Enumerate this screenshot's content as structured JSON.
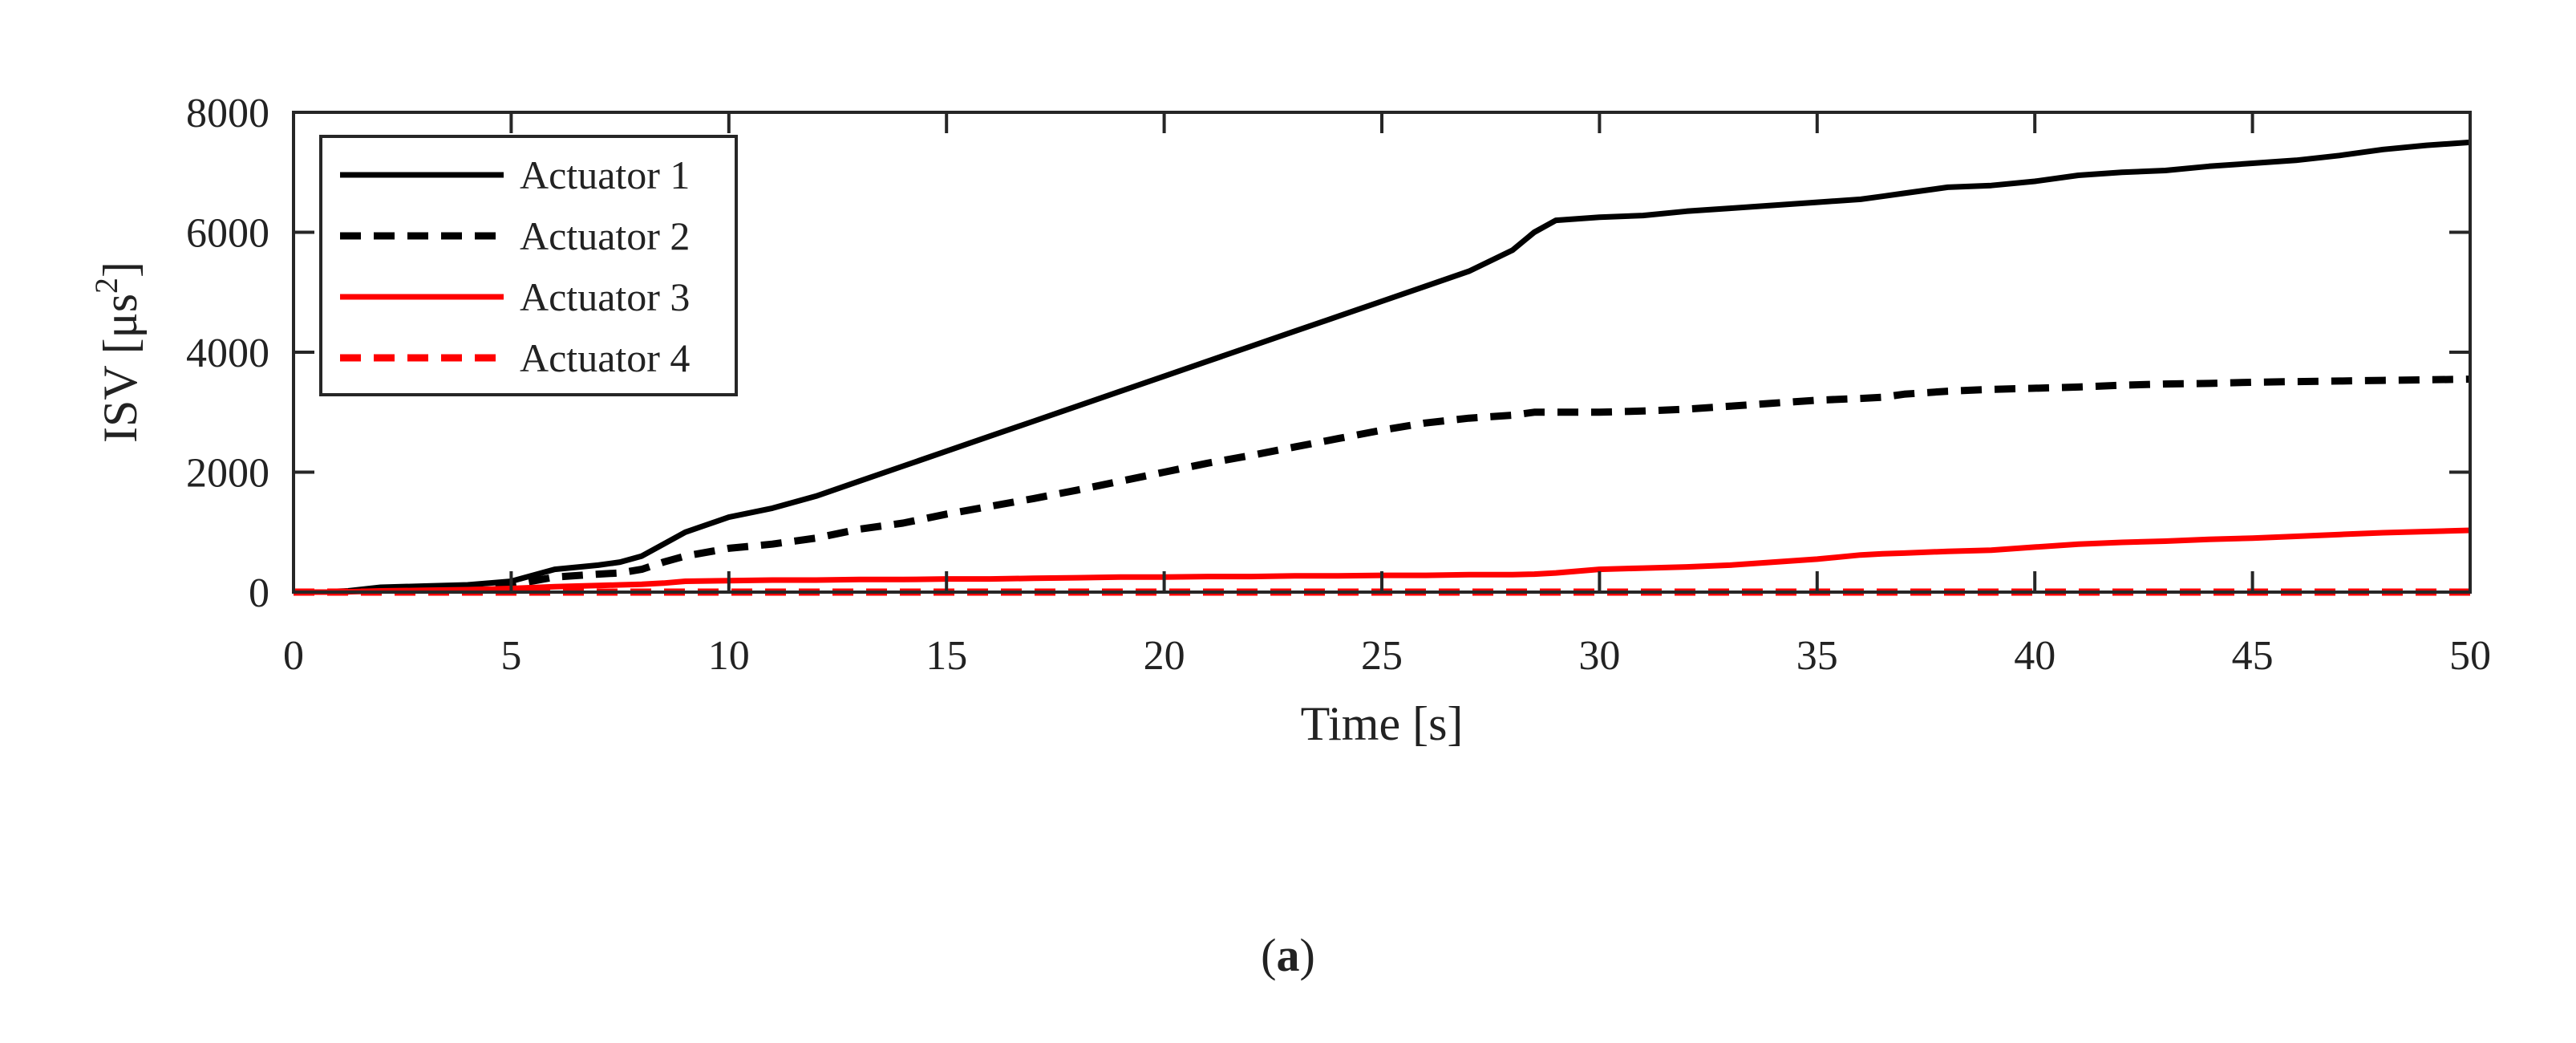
{
  "chart_data": {
    "type": "line",
    "title": "",
    "xlabel": "Time [s]",
    "ylabel_prefix": "ISV [μs",
    "ylabel_sup": "2",
    "ylabel_suffix": "]",
    "xlim": [
      0,
      50
    ],
    "ylim": [
      0,
      8000
    ],
    "xticks": [
      0,
      5,
      10,
      15,
      20,
      25,
      30,
      35,
      40,
      45,
      50
    ],
    "yticks": [
      0,
      2000,
      4000,
      6000,
      8000
    ],
    "xtick_labels": [
      "0",
      "5",
      "10",
      "15",
      "20",
      "25",
      "30",
      "35",
      "40",
      "45",
      "50"
    ],
    "ytick_labels": [
      "0",
      "2000",
      "4000",
      "6000",
      "8000"
    ],
    "grid": false,
    "legend_position": "top-left",
    "caption_open": "(",
    "caption_letter": "a",
    "caption_close": ")",
    "x": [
      0,
      1,
      2,
      3,
      4,
      5,
      6,
      7,
      7.5,
      8,
      8.5,
      9,
      10,
      11,
      12,
      13,
      14,
      15,
      16,
      17,
      18,
      19,
      20,
      21,
      22,
      23,
      24,
      25,
      26,
      27,
      28,
      28.5,
      29,
      30,
      31,
      32,
      33,
      34,
      35,
      36,
      36.5,
      37,
      38,
      39,
      40,
      41,
      42,
      43,
      44,
      45,
      46,
      47,
      48,
      49,
      50
    ],
    "series": [
      {
        "name": "Actuator 1",
        "color": "#000000",
        "dash": "solid",
        "values": [
          0,
          0,
          80,
          100,
          120,
          180,
          380,
          450,
          500,
          600,
          800,
          1000,
          1250,
          1400,
          1600,
          1850,
          2100,
          2350,
          2600,
          2850,
          3100,
          3350,
          3600,
          3850,
          4100,
          4350,
          4600,
          4850,
          5100,
          5350,
          5700,
          6000,
          6200,
          6250,
          6280,
          6350,
          6400,
          6450,
          6500,
          6550,
          6600,
          6650,
          6750,
          6780,
          6850,
          6950,
          7000,
          7030,
          7100,
          7150,
          7200,
          7280,
          7380,
          7450,
          7500
        ]
      },
      {
        "name": "Actuator 2",
        "color": "#000000",
        "dash": "dashed",
        "values": [
          0,
          0,
          30,
          50,
          60,
          120,
          250,
          300,
          320,
          380,
          500,
          600,
          730,
          800,
          900,
          1050,
          1150,
          1300,
          1430,
          1560,
          1700,
          1850,
          2000,
          2150,
          2280,
          2420,
          2560,
          2700,
          2820,
          2900,
          2950,
          3000,
          3000,
          3000,
          3020,
          3050,
          3100,
          3150,
          3200,
          3230,
          3250,
          3300,
          3350,
          3380,
          3400,
          3420,
          3450,
          3470,
          3480,
          3500,
          3510,
          3520,
          3530,
          3540,
          3550
        ]
      },
      {
        "name": "Actuator 3",
        "color": "#ff0000",
        "dash": "solid",
        "values": [
          0,
          0,
          20,
          30,
          40,
          60,
          90,
          110,
          120,
          130,
          150,
          180,
          190,
          200,
          200,
          210,
          210,
          220,
          220,
          230,
          240,
          250,
          250,
          260,
          260,
          270,
          270,
          280,
          280,
          290,
          290,
          300,
          320,
          380,
          400,
          420,
          450,
          500,
          550,
          620,
          640,
          650,
          680,
          700,
          750,
          800,
          830,
          850,
          880,
          900,
          930,
          960,
          990,
          1010,
          1030
        ]
      },
      {
        "name": "Actuator 4",
        "color": "#ff0000",
        "dash": "dashed",
        "values": [
          0,
          0,
          0,
          0,
          0,
          0,
          0,
          0,
          0,
          0,
          0,
          0,
          0,
          0,
          0,
          0,
          0,
          0,
          0,
          0,
          0,
          0,
          0,
          0,
          0,
          0,
          0,
          0,
          0,
          0,
          0,
          0,
          0,
          0,
          0,
          0,
          0,
          0,
          0,
          0,
          0,
          0,
          0,
          0,
          0,
          0,
          0,
          0,
          0,
          0,
          0,
          0,
          0,
          0,
          0
        ]
      }
    ]
  }
}
